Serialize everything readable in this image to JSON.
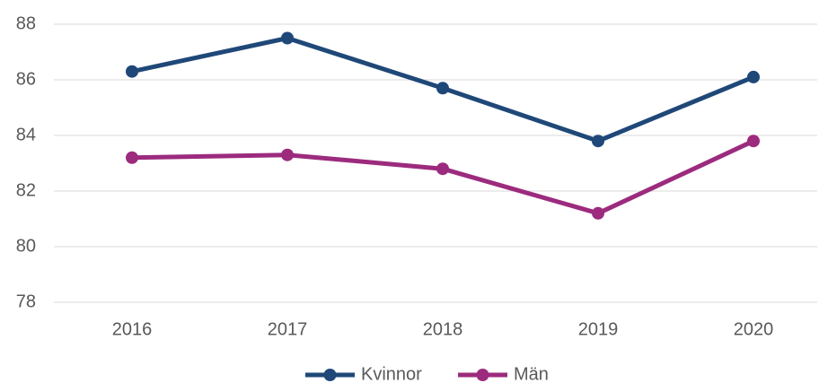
{
  "chart_data": {
    "type": "line",
    "categories": [
      "2016",
      "2017",
      "2018",
      "2019",
      "2020"
    ],
    "series": [
      {
        "name": "Kvinnor",
        "color": "#1f4878",
        "values": [
          86.3,
          87.5,
          85.7,
          83.8,
          86.1
        ]
      },
      {
        "name": "Män",
        "color": "#9c2b7e",
        "values": [
          83.2,
          83.3,
          82.8,
          81.2,
          83.8
        ]
      }
    ],
    "ylim": [
      78,
      88
    ],
    "yticks": [
      78,
      80,
      82,
      84,
      86,
      88
    ],
    "grid": true,
    "legend": "bottom"
  }
}
